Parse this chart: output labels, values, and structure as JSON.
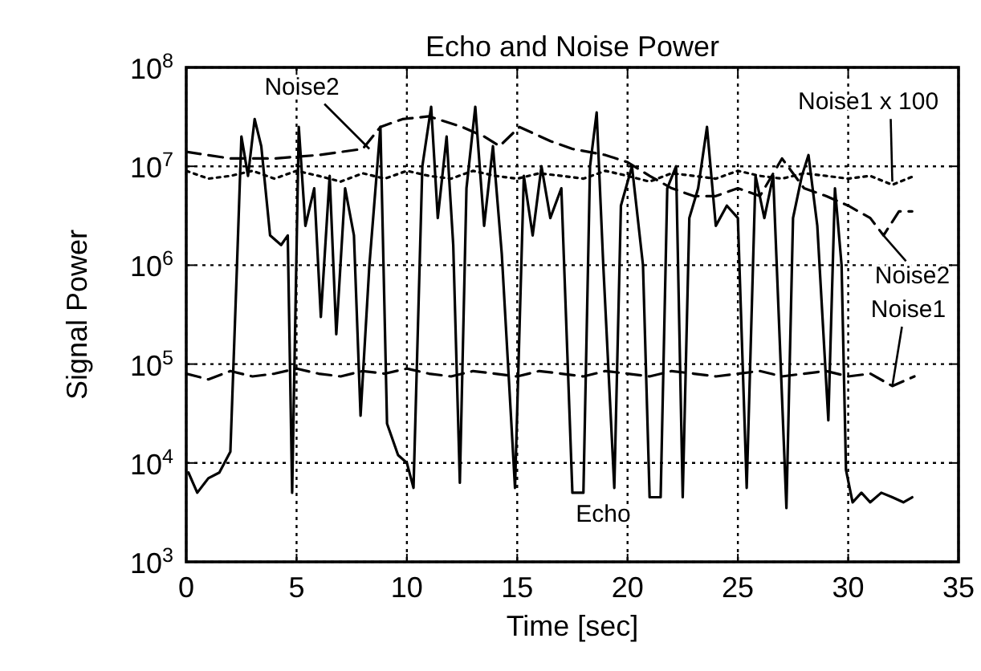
{
  "chart_data": {
    "type": "line",
    "title": "Echo and Noise Power",
    "xlabel": "Time [sec]",
    "ylabel": "Signal Power",
    "log": "y",
    "grid": true,
    "marker": "none",
    "xlim": [
      0,
      35
    ],
    "xticks": [
      0,
      5,
      10,
      15,
      20,
      25,
      30,
      35
    ],
    "ylim": [
      1000,
      100000000
    ],
    "yticks": [
      {
        "value": 1000,
        "label": "10$^{3}$"
      },
      {
        "value": 10000,
        "label": "10$^{4}$"
      },
      {
        "value": 100000,
        "label": "10$^{5}$"
      },
      {
        "value": 1000000,
        "label": "10$^{6}$"
      },
      {
        "value": 10000000,
        "label": "10$^{7}$"
      },
      {
        "value": 100000000,
        "label": "10$^{8}$"
      }
    ],
    "series": [
      {
        "color": "#000000",
        "line_style": "solid",
        "x": [
          0.1,
          0.5,
          1,
          1.5,
          2,
          2.3,
          2.5,
          2.8,
          3.1,
          3.4,
          3.8,
          4.3,
          4.6,
          4.8,
          5.1,
          5.4,
          5.8,
          6.1,
          6.5,
          6.8,
          7.2,
          7.6,
          7.9,
          8.3,
          8.8,
          9.1,
          9.6,
          10,
          10.3,
          10.7,
          11.1,
          11.4,
          11.8,
          12.1,
          12.4,
          12.7,
          13.1,
          13.5,
          13.9,
          14.3,
          14.9,
          15.3,
          15.7,
          16.1,
          16.5,
          17,
          17.5,
          18,
          18.3,
          18.6,
          18.9,
          19.4,
          19.7,
          20.2,
          20.7,
          21,
          21.5,
          21.8,
          22.2,
          22.5,
          22.8,
          23.2,
          23.6,
          24,
          24.5,
          25,
          25.4,
          25.8,
          26.2,
          26.6,
          27.2,
          27.5,
          27.9,
          28.2,
          28.6,
          29.1,
          29.4,
          29.7,
          29.9,
          30.2,
          30.6,
          31,
          31.5,
          32,
          32.5,
          32.9
        ],
        "values": [
          8000,
          5000,
          7000,
          8000,
          13000,
          1000000,
          20000000,
          8000000,
          30000000,
          16000000,
          2000000,
          1600000,
          2000000,
          5000,
          25000000,
          2500000,
          6000000,
          300000,
          8000000,
          200000,
          6000000,
          2000000,
          30000,
          1000000,
          25000000,
          25000,
          12000,
          10000,
          5600,
          10000000,
          40000000,
          3000000,
          20000000,
          1600000,
          6300,
          6000000,
          40000000,
          2500000,
          16000000,
          1300000,
          5600,
          8000000,
          2000000,
          10000000,
          3000000,
          6000000,
          5000,
          5000,
          10000000,
          35000000,
          1000000,
          5600,
          4000000,
          10000000,
          1000000,
          4500,
          4500,
          6000000,
          10000000,
          4500,
          3000000,
          6000000,
          25000000,
          2500000,
          4000000,
          3000000,
          5600,
          8000000,
          3000000,
          8000000,
          3500,
          3000000,
          8000000,
          13000000,
          2500000,
          27000,
          6000000,
          1000000,
          8500,
          4000,
          5000,
          4000,
          5000,
          4500,
          4000,
          4500
        ]
      },
      {
        "color": "#000000",
        "line_style": "dashed",
        "x": [
          0,
          2,
          4,
          6,
          8,
          8.8,
          9.8,
          11,
          12.5,
          13.5,
          14.2,
          15.1,
          16.5,
          17.5,
          19,
          20,
          21,
          22,
          23,
          24,
          25,
          26,
          27,
          28,
          29,
          30,
          31,
          31.6,
          32.3,
          32.9
        ],
        "values": [
          14000000,
          12000000,
          12000000,
          13000000,
          15000000,
          25000000,
          30000000,
          32000000,
          25000000,
          20000000,
          16000000,
          25000000,
          18000000,
          15000000,
          13000000,
          11000000,
          8000000,
          6000000,
          5000000,
          5000000,
          6000000,
          5000000,
          12000000,
          6000000,
          5000000,
          4000000,
          3000000,
          2000000,
          3500000,
          3500000
        ]
      },
      {
        "color": "#000000",
        "line_style": "dotted",
        "x": [
          0,
          1,
          2,
          3,
          4,
          5,
          6,
          7,
          8,
          9,
          10,
          11,
          12,
          13,
          14,
          15,
          16,
          17,
          18,
          19,
          20,
          21,
          22,
          23,
          24,
          25,
          26,
          27,
          28,
          29,
          30,
          31,
          32,
          33
        ],
        "values": [
          9000000,
          7500000,
          8000000,
          9000000,
          7500000,
          9000000,
          8000000,
          7000000,
          8500000,
          7500000,
          9000000,
          8000000,
          7500000,
          9000000,
          8000000,
          7500000,
          8500000,
          8000000,
          7500000,
          9000000,
          8000000,
          7000000,
          8500000,
          8000000,
          7500000,
          9000000,
          8000000,
          7500000,
          8500000,
          8000000,
          7500000,
          8000000,
          6500000,
          8000000
        ]
      },
      {
        "color": "#000000",
        "line_style": "dashed",
        "x": [
          0,
          1,
          2,
          3,
          4,
          5,
          6,
          7,
          8,
          9,
          10,
          11,
          12,
          13,
          14,
          15,
          16,
          17,
          18,
          19,
          20,
          21,
          22,
          23,
          24,
          25,
          26,
          27,
          28,
          29,
          30,
          31,
          32,
          33
        ],
        "values": [
          80000,
          70000,
          85000,
          75000,
          80000,
          90000,
          80000,
          75000,
          85000,
          80000,
          90000,
          80000,
          75000,
          85000,
          80000,
          75000,
          85000,
          80000,
          75000,
          85000,
          80000,
          75000,
          85000,
          80000,
          75000,
          80000,
          85000,
          75000,
          80000,
          85000,
          75000,
          80000,
          60000,
          75000
        ]
      }
    ],
    "annotations": [
      {
        "text": "Noise2",
        "x": 8.3,
        "y": 15000000
      },
      {
        "text": "Noise1 x 100",
        "x": 32,
        "y": 7000000
      },
      {
        "text": "Noise2",
        "x": 31.6,
        "y": 2000000
      },
      {
        "text": "Noise1",
        "x": 32,
        "y": 60000
      },
      "Echo"
    ]
  }
}
